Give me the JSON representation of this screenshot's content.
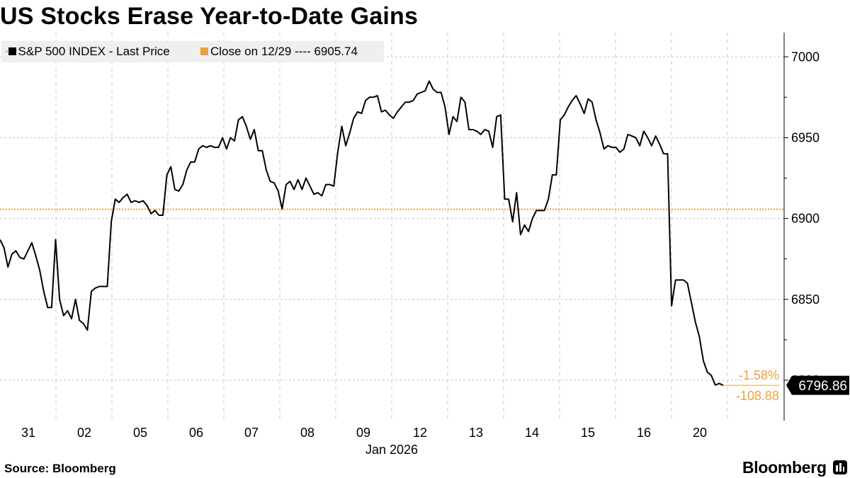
{
  "title": "US Stocks Erase Year-to-Date Gains",
  "source": "Source: Bloomberg",
  "brand": "Bloomberg",
  "legend": {
    "series_label": "S&P 500 INDEX - Last Price",
    "ref_label": "Close on 12/29 ---- 6905.74"
  },
  "colors": {
    "line": "#000000",
    "reference": "#e8a33c",
    "grid": "#c8c8c8"
  },
  "chart_data": {
    "type": "line",
    "ylim": [
      6775,
      7015
    ],
    "yticks": [
      6800,
      6850,
      6900,
      6950,
      7000
    ],
    "ytick_labels": [
      "6800",
      "6850",
      "6900",
      "6950",
      "7000"
    ],
    "x_tick_labels": [
      "31",
      "02",
      "05",
      "06",
      "07",
      "08",
      "09",
      "12",
      "13",
      "14",
      "15",
      "16",
      "20"
    ],
    "x_axis_title": "Jan 2026",
    "grid": true,
    "series": [
      {
        "values": [
          6887,
          6882,
          6870,
          6878,
          6880,
          6876,
          6875,
          6880,
          6885,
          6877,
          6868,
          6855,
          6845,
          6845,
          6887,
          6850,
          6840,
          6843,
          6838,
          6850,
          6837,
          6835,
          6831,
          6855,
          6857,
          6858,
          6858,
          6858,
          6898,
          6912,
          6910,
          6913,
          6915,
          6910,
          6911,
          6910,
          6911,
          6908,
          6903,
          6905,
          6902,
          6902,
          6927,
          6932,
          6918,
          6917,
          6921,
          6930,
          6935,
          6935,
          6943,
          6945,
          6944,
          6945,
          6944,
          6944,
          6950,
          6943,
          6950,
          6948,
          6961,
          6963,
          6957,
          6949,
          6955,
          6942,
          6942,
          6930,
          6923,
          6922,
          6917,
          6906,
          6921,
          6923,
          6918,
          6924,
          6918,
          6925,
          6920,
          6915,
          6916,
          6914,
          6921,
          6921,
          6920,
          6941,
          6957,
          6945,
          6953,
          6962,
          6966,
          6965,
          6973,
          6975,
          6975,
          6976,
          6966,
          6967,
          6964,
          6962,
          6966,
          6969,
          6972,
          6972,
          6973,
          6977,
          6978,
          6979,
          6985,
          6980,
          6978,
          6978,
          6969,
          6952,
          6963,
          6960,
          6975,
          6972,
          6955,
          6955,
          6954,
          6952,
          6955,
          6954,
          6944,
          6963,
          6964,
          6912,
          6912,
          6898,
          6916,
          6890,
          6896,
          6892,
          6900,
          6905,
          6905,
          6905,
          6912,
          6927,
          6927,
          6961,
          6964,
          6969,
          6973,
          6976,
          6971,
          6965,
          6974,
          6972,
          6961,
          6953,
          6943,
          6945,
          6944,
          6944,
          6941,
          6943,
          6952,
          6951,
          6950,
          6945,
          6954,
          6950,
          6945,
          6951,
          6946,
          6940,
          6940,
          6846,
          6862,
          6862,
          6862,
          6860,
          6848,
          6836,
          6827,
          6812,
          6805,
          6803,
          6797,
          6798,
          6796.86
        ],
        "reference_value": 6905.74,
        "last_value_label": "6796.86",
        "change_pct_label": "-1.58%",
        "change_abs_label": "-108.88"
      }
    ]
  }
}
